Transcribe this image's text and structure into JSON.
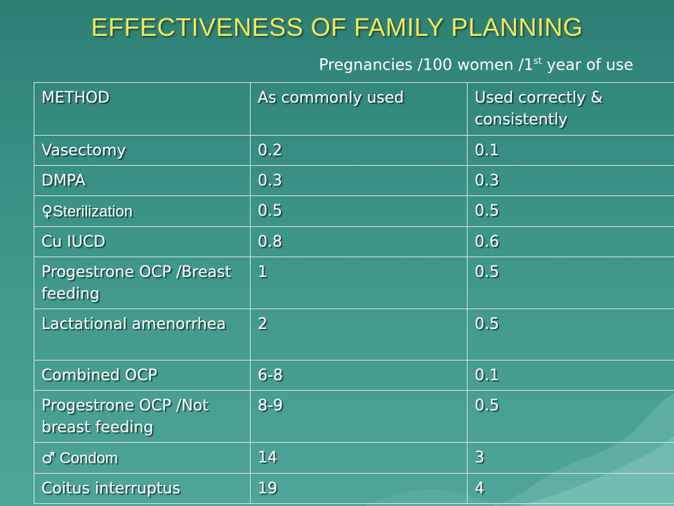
{
  "title": "EFFECTIVENESS OF FAMILY PLANNING",
  "subtitle": {
    "text": "Pregnancies /100 women /1",
    "superscript": "st",
    "suffix": " year of use"
  },
  "table": {
    "headers": [
      "METHOD",
      "As commonly used",
      "Used correctly & consistently"
    ],
    "rows": [
      {
        "method": "Vasectomy",
        "common": "0.2",
        "correct": "0.1"
      },
      {
        "method": "DMPA",
        "common": "0.3",
        "correct": "0.3"
      },
      {
        "method_symbol": "♀",
        "method": "Sterilization",
        "common": "0.5",
        "correct": "0.5"
      },
      {
        "method": "Cu IUCD",
        "common": "0.8",
        "correct": "0.6"
      },
      {
        "method": "Progestrone OCP /Breast feeding",
        "common": "1",
        "correct": "0.5"
      },
      {
        "method": "Lactational amenorrhea",
        "common": "2",
        "correct": "0.5"
      },
      {
        "method": "Combined OCP",
        "common": "6-8",
        "correct": "0.1"
      },
      {
        "method": "Progestrone OCP /Not breast feeding",
        "common": "8-9",
        "correct": "0.5"
      },
      {
        "method_symbol": "♂",
        "method": " Condom",
        "common": "14",
        "correct": "3"
      },
      {
        "method": "Coitus interruptus",
        "common": "19",
        "correct": "4"
      }
    ]
  },
  "colors": {
    "title": "#f2e85a",
    "text": "#ffffff",
    "border": "#d9e8e5",
    "background": "#3d9588"
  }
}
